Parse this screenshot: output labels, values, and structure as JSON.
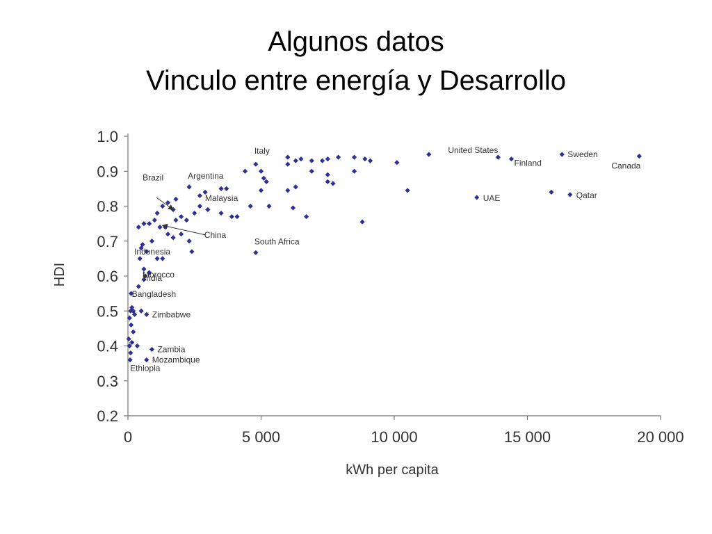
{
  "slide": {
    "title_line1": "Algunos datos",
    "title_line2": "Vinculo entre energía y Desarrollo"
  },
  "chart_data": {
    "type": "scatter",
    "title": "",
    "xlabel": "kWh per capita",
    "ylabel": "HDI",
    "xlim": [
      0,
      20000
    ],
    "ylim": [
      0.2,
      1.0
    ],
    "x_ticks": [
      0,
      5000,
      10000,
      15000,
      20000
    ],
    "x_tick_labels": [
      "0",
      "5 000",
      "10 000",
      "15 000",
      "20 000"
    ],
    "y_ticks": [
      0.2,
      0.3,
      0.4,
      0.5,
      0.6,
      0.7,
      0.8,
      0.9,
      1.0
    ],
    "y_tick_labels": [
      "0.2",
      "0.3",
      "0.4",
      "0.5",
      "0.6",
      "0.7",
      "0.8",
      "0.9",
      "1.0"
    ],
    "grid": false,
    "marker_color": "#2e3192",
    "labeled_points": [
      {
        "label": "Italy",
        "x": 4800,
        "y": 0.92
      },
      {
        "label": "Argentina",
        "x": 2300,
        "y": 0.855
      },
      {
        "label": "Brazil",
        "x": 1700,
        "y": 0.79
      },
      {
        "label": "Malaysia",
        "x": 3000,
        "y": 0.795
      },
      {
        "label": "China",
        "x": 1300,
        "y": 0.745
      },
      {
        "label": "Indonesia",
        "x": 550,
        "y": 0.69
      },
      {
        "label": "South Africa",
        "x": 4800,
        "y": 0.667
      },
      {
        "label": "Morocco",
        "x": 600,
        "y": 0.62
      },
      {
        "label": "India",
        "x": 650,
        "y": 0.6
      },
      {
        "label": "Bangladesh",
        "x": 150,
        "y": 0.52
      },
      {
        "label": "Zimbabwe",
        "x": 700,
        "y": 0.49
      },
      {
        "label": "Zambia",
        "x": 900,
        "y": 0.39
      },
      {
        "label": "Mozambique",
        "x": 700,
        "y": 0.36
      },
      {
        "label": "Ethiopia",
        "x": 80,
        "y": 0.36
      },
      {
        "label": "United States",
        "x": 13900,
        "y": 0.94
      },
      {
        "label": "Finland",
        "x": 14400,
        "y": 0.935
      },
      {
        "label": "Sweden",
        "x": 16300,
        "y": 0.948
      },
      {
        "label": "Canada",
        "x": 19200,
        "y": 0.943
      },
      {
        "label": "UAE",
        "x": 13100,
        "y": 0.825
      },
      {
        "label": "Qatar",
        "x": 16600,
        "y": 0.833
      }
    ],
    "points": [
      {
        "x": 80,
        "y": 0.36
      },
      {
        "x": 100,
        "y": 0.38
      },
      {
        "x": 60,
        "y": 0.4
      },
      {
        "x": 150,
        "y": 0.41
      },
      {
        "x": 30,
        "y": 0.42
      },
      {
        "x": 200,
        "y": 0.44
      },
      {
        "x": 120,
        "y": 0.46
      },
      {
        "x": 60,
        "y": 0.48
      },
      {
        "x": 100,
        "y": 0.5
      },
      {
        "x": 150,
        "y": 0.51
      },
      {
        "x": 200,
        "y": 0.5
      },
      {
        "x": 250,
        "y": 0.49
      },
      {
        "x": 120,
        "y": 0.55
      },
      {
        "x": 350,
        "y": 0.4
      },
      {
        "x": 400,
        "y": 0.57
      },
      {
        "x": 600,
        "y": 0.59
      },
      {
        "x": 500,
        "y": 0.5
      },
      {
        "x": 700,
        "y": 0.49
      },
      {
        "x": 900,
        "y": 0.39
      },
      {
        "x": 700,
        "y": 0.36
      },
      {
        "x": 650,
        "y": 0.6
      },
      {
        "x": 800,
        "y": 0.61
      },
      {
        "x": 600,
        "y": 0.62
      },
      {
        "x": 450,
        "y": 0.65
      },
      {
        "x": 500,
        "y": 0.68
      },
      {
        "x": 550,
        "y": 0.69
      },
      {
        "x": 700,
        "y": 0.67
      },
      {
        "x": 900,
        "y": 0.7
      },
      {
        "x": 1100,
        "y": 0.65
      },
      {
        "x": 1300,
        "y": 0.65
      },
      {
        "x": 400,
        "y": 0.74
      },
      {
        "x": 600,
        "y": 0.75
      },
      {
        "x": 800,
        "y": 0.75
      },
      {
        "x": 1000,
        "y": 0.76
      },
      {
        "x": 1200,
        "y": 0.74
      },
      {
        "x": 1400,
        "y": 0.74
      },
      {
        "x": 1500,
        "y": 0.72
      },
      {
        "x": 1700,
        "y": 0.71
      },
      {
        "x": 2000,
        "y": 0.72
      },
      {
        "x": 2300,
        "y": 0.7
      },
      {
        "x": 2400,
        "y": 0.67
      },
      {
        "x": 1100,
        "y": 0.78
      },
      {
        "x": 1300,
        "y": 0.8
      },
      {
        "x": 1500,
        "y": 0.81
      },
      {
        "x": 1700,
        "y": 0.79
      },
      {
        "x": 1800,
        "y": 0.76
      },
      {
        "x": 2000,
        "y": 0.77
      },
      {
        "x": 2200,
        "y": 0.76
      },
      {
        "x": 2500,
        "y": 0.78
      },
      {
        "x": 2700,
        "y": 0.8
      },
      {
        "x": 3000,
        "y": 0.79
      },
      {
        "x": 2300,
        "y": 0.855
      },
      {
        "x": 2700,
        "y": 0.83
      },
      {
        "x": 2900,
        "y": 0.84
      },
      {
        "x": 1800,
        "y": 0.82
      },
      {
        "x": 3500,
        "y": 0.85
      },
      {
        "x": 3700,
        "y": 0.85
      },
      {
        "x": 3500,
        "y": 0.78
      },
      {
        "x": 3900,
        "y": 0.77
      },
      {
        "x": 4100,
        "y": 0.77
      },
      {
        "x": 4600,
        "y": 0.8
      },
      {
        "x": 4400,
        "y": 0.9
      },
      {
        "x": 4800,
        "y": 0.92
      },
      {
        "x": 5000,
        "y": 0.9
      },
      {
        "x": 5100,
        "y": 0.88
      },
      {
        "x": 5200,
        "y": 0.87
      },
      {
        "x": 5000,
        "y": 0.845
      },
      {
        "x": 5300,
        "y": 0.8
      },
      {
        "x": 4800,
        "y": 0.667
      },
      {
        "x": 6000,
        "y": 0.94
      },
      {
        "x": 6300,
        "y": 0.93
      },
      {
        "x": 6500,
        "y": 0.935
      },
      {
        "x": 6000,
        "y": 0.92
      },
      {
        "x": 6000,
        "y": 0.845
      },
      {
        "x": 6300,
        "y": 0.855
      },
      {
        "x": 6200,
        "y": 0.795
      },
      {
        "x": 6700,
        "y": 0.77
      },
      {
        "x": 6900,
        "y": 0.93
      },
      {
        "x": 6900,
        "y": 0.9
      },
      {
        "x": 7300,
        "y": 0.93
      },
      {
        "x": 7500,
        "y": 0.935
      },
      {
        "x": 7900,
        "y": 0.94
      },
      {
        "x": 7500,
        "y": 0.89
      },
      {
        "x": 7500,
        "y": 0.87
      },
      {
        "x": 7700,
        "y": 0.865
      },
      {
        "x": 8500,
        "y": 0.94
      },
      {
        "x": 8500,
        "y": 0.9
      },
      {
        "x": 8900,
        "y": 0.935
      },
      {
        "x": 9100,
        "y": 0.93
      },
      {
        "x": 8800,
        "y": 0.755
      },
      {
        "x": 10100,
        "y": 0.925
      },
      {
        "x": 10500,
        "y": 0.845
      },
      {
        "x": 11300,
        "y": 0.948
      },
      {
        "x": 13900,
        "y": 0.94
      },
      {
        "x": 14400,
        "y": 0.935
      },
      {
        "x": 13100,
        "y": 0.825
      },
      {
        "x": 16300,
        "y": 0.948
      },
      {
        "x": 15900,
        "y": 0.84
      },
      {
        "x": 16600,
        "y": 0.833
      },
      {
        "x": 19200,
        "y": 0.943
      }
    ]
  }
}
